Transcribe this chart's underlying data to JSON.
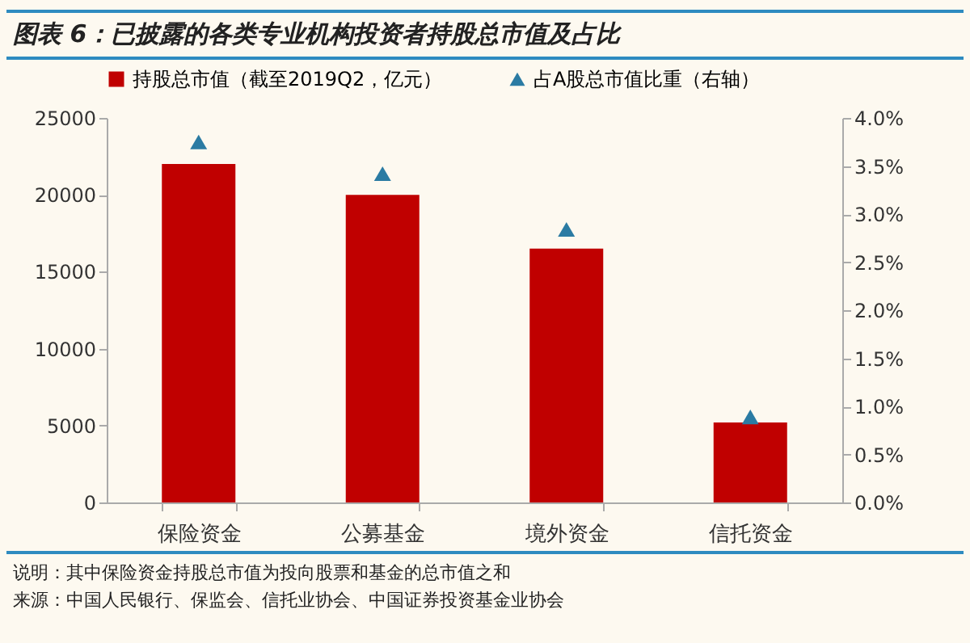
{
  "chart_data": {
    "type": "bar",
    "title": "图表 6：已披露的各类专业机构投资者持股总市值及占比",
    "categories": [
      "保险资金",
      "公募基金",
      "境外资金",
      "信托资金"
    ],
    "series": [
      {
        "name": "持股总市值（截至2019Q2，亿元）",
        "color": "#c00000",
        "values": [
          22000,
          20000,
          16500,
          5200
        ]
      },
      {
        "name": "占A股总市值比重（右轴）",
        "color": "#2b7ba3",
        "type": "scatter",
        "axis": "y2",
        "values": [
          3.75,
          3.42,
          2.84,
          0.89
        ]
      }
    ],
    "marker": "triangle",
    "legend": "top",
    "grid": false,
    "ylim": [
      0,
      25000
    ],
    "yticks": [
      0,
      5000,
      10000,
      15000,
      20000,
      25000
    ],
    "y2lim": [
      0,
      4
    ],
    "y2ticks": [
      {
        "value": 0,
        "label": "0.0%"
      },
      {
        "value": 0.5,
        "label": "0.5%"
      },
      {
        "value": 1,
        "label": "1.0%"
      },
      {
        "value": 1.5,
        "label": "1.5%"
      },
      {
        "value": 2,
        "label": "2.0%"
      },
      {
        "value": 2.5,
        "label": "2.5%"
      },
      {
        "value": 3,
        "label": "3.0%"
      },
      {
        "value": 3.5,
        "label": "3.5%"
      },
      {
        "value": 4,
        "label": "4.0%"
      }
    ],
    "annotations": [
      "说明：其中保险资金持股总市值为投向股票和基金的总市值之和",
      "来源：中国人民银行、保监会、信托业协会、中国证券投资基金业协会"
    ]
  }
}
